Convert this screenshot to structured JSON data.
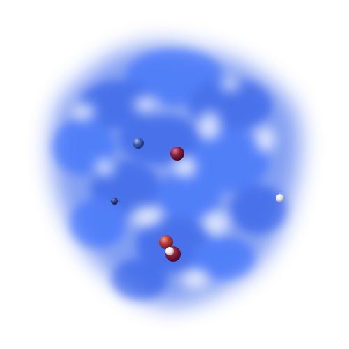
{
  "scene": {
    "background_color": "#ffffff",
    "cloud_color": "#1f4fe6",
    "cloud_highlight_color": "#2a66ff",
    "spheres": [
      {
        "name": "blue-sphere-upper-left",
        "color": "#3f62b8"
      },
      {
        "name": "maroon-sphere-center",
        "color": "#8a1f3e"
      },
      {
        "name": "navy-sphere-left",
        "color": "#2d3f85"
      },
      {
        "name": "white-sphere-right",
        "color": "#d9dde6"
      },
      {
        "name": "maroon-sphere-lower",
        "color": "#7a1b3a"
      },
      {
        "name": "red-sphere-lower",
        "color": "#b83a3a"
      },
      {
        "name": "white-sphere-lower",
        "color": "#f0e4e4"
      }
    ]
  }
}
